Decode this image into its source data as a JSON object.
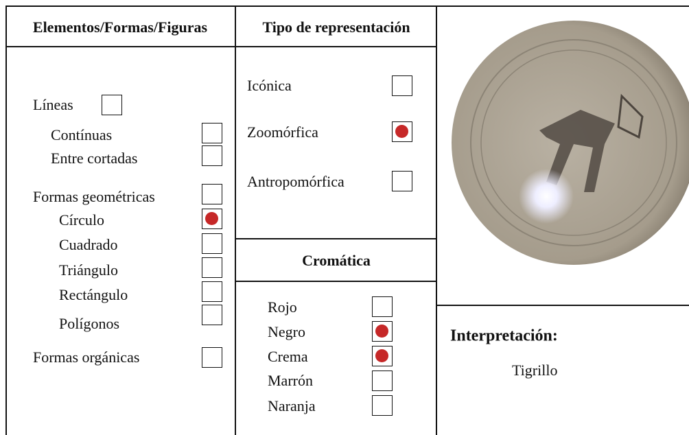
{
  "columns": {
    "elements": {
      "header": "Elementos/Formas/Figuras",
      "items": [
        {
          "label": "Líneas",
          "checked": false
        },
        {
          "label": "Contínuas",
          "checked": false
        },
        {
          "label": "Entre cortadas",
          "checked": false
        },
        {
          "label": "Formas geométricas",
          "checked": false
        },
        {
          "label": "Círculo",
          "checked": true
        },
        {
          "label": "Cuadrado",
          "checked": false
        },
        {
          "label": "Triángulo",
          "checked": false
        },
        {
          "label": "Rectángulo",
          "checked": false
        },
        {
          "label": "Polígonos",
          "checked": false
        },
        {
          "label": "Formas orgánicas",
          "checked": false
        }
      ]
    },
    "representation": {
      "header": "Tipo de representación",
      "items": [
        {
          "label": "Icónica",
          "checked": false
        },
        {
          "label": "Zoomórfica",
          "checked": true
        },
        {
          "label": "Antropomórfica",
          "checked": false
        }
      ]
    },
    "chromatic": {
      "header": "Cromática",
      "items": [
        {
          "label": "Rojo",
          "checked": false
        },
        {
          "label": "Negro",
          "checked": true
        },
        {
          "label": "Crema",
          "checked": true
        },
        {
          "label": "Marrón",
          "checked": false
        },
        {
          "label": "Naranja",
          "checked": false
        }
      ]
    }
  },
  "interpretation": {
    "label": "Interpretación:",
    "value": "Tigrillo"
  }
}
